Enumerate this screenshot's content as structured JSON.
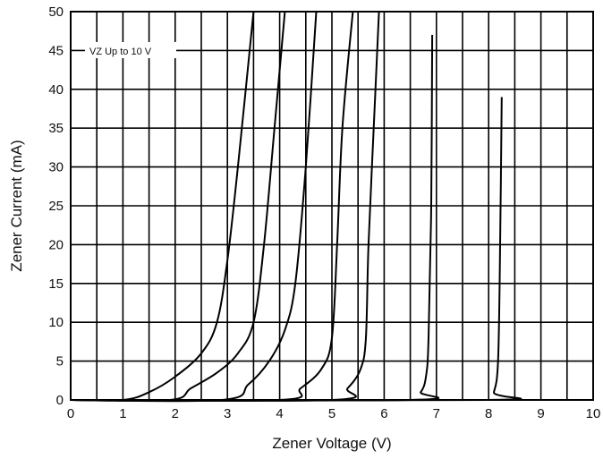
{
  "chart_data": {
    "type": "line",
    "title": "",
    "xlabel": "Zener Voltage (V)",
    "ylabel": "Zener Current (mA)",
    "xlim": [
      0,
      10
    ],
    "ylim": [
      0,
      50
    ],
    "xticks": [
      0,
      1,
      2,
      3,
      4,
      5,
      6,
      7,
      8,
      9,
      10
    ],
    "yticks": [
      0,
      5,
      10,
      15,
      20,
      25,
      30,
      35,
      40,
      45,
      50
    ],
    "x_minor_gridlines": [
      0.5,
      1.5,
      2.5,
      3.5,
      4.5,
      5.5,
      6.5,
      7.5,
      8.5,
      9.5
    ],
    "grid": true,
    "annotation": "VZ Up to 10 V",
    "series": [
      {
        "x": [
          0,
          1.0,
          1.5,
          2.0,
          2.5,
          2.8,
          3.0,
          3.2,
          3.5
        ],
        "y": [
          0,
          0,
          1,
          3,
          6,
          10,
          18,
          30,
          50
        ]
      },
      {
        "x": [
          0,
          1.9,
          2.3,
          2.8,
          3.2,
          3.5,
          3.7,
          3.9,
          4.1
        ],
        "y": [
          0,
          0,
          1.5,
          3.5,
          6,
          10,
          20,
          35,
          50
        ]
      },
      {
        "x": [
          0,
          2.9,
          3.4,
          3.8,
          4.1,
          4.3,
          4.5,
          4.7
        ],
        "y": [
          0,
          0,
          2,
          5,
          9,
          15,
          30,
          50
        ]
      },
      {
        "x": [
          0,
          4.0,
          4.4,
          4.8,
          5.0,
          5.1,
          5.2,
          5.4
        ],
        "y": [
          0,
          0,
          1.5,
          4,
          8,
          20,
          35,
          50
        ]
      },
      {
        "x": [
          0,
          5.0,
          5.3,
          5.55,
          5.65,
          5.7,
          5.8,
          5.9
        ],
        "y": [
          0,
          0,
          1.5,
          4,
          8,
          20,
          35,
          50
        ]
      },
      {
        "x": [
          0,
          6.5,
          6.7,
          6.8,
          6.85,
          6.9,
          6.92
        ],
        "y": [
          0,
          0,
          1,
          3,
          8,
          25,
          47
        ]
      },
      {
        "x": [
          0,
          8.0,
          8.1,
          8.18,
          8.22,
          8.25
        ],
        "y": [
          0,
          0,
          1,
          5,
          20,
          39
        ]
      }
    ]
  },
  "colors": {
    "background": "#ffffff",
    "grid": "#000000",
    "line": "#000000"
  }
}
